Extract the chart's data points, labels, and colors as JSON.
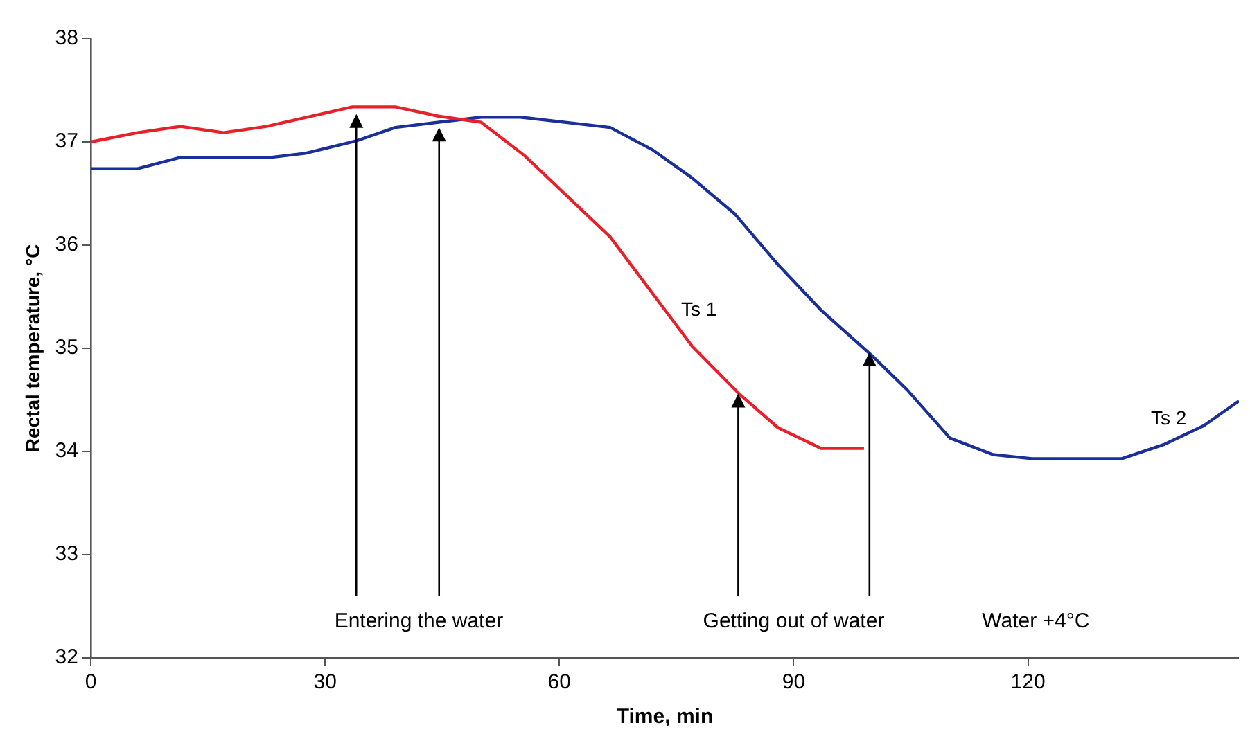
{
  "chart_data": {
    "type": "line",
    "xlabel": "Time, min",
    "ylabel": "Rectal temperature, °C",
    "xlim": [
      0,
      147
    ],
    "xticks": [
      0,
      30,
      60,
      90,
      120
    ],
    "ylim": [
      32,
      38
    ],
    "yticks": [
      32,
      33,
      34,
      35,
      36,
      37,
      38
    ],
    "marker": "none",
    "line_style": "solid",
    "legend": false,
    "series": [
      {
        "name": "Ts 1",
        "color": "#e8202a",
        "x": [
          0,
          6,
          11.5,
          17,
          22.5,
          33.5,
          39,
          44.5,
          50,
          55.5,
          66.5,
          77,
          83,
          88,
          93.5,
          99
        ],
        "values": [
          37.0,
          37.09,
          37.15,
          37.09,
          37.15,
          37.34,
          37.34,
          37.25,
          37.19,
          36.87,
          36.08,
          35.02,
          34.56,
          34.23,
          34.03,
          34.03
        ]
      },
      {
        "name": "Ts 2",
        "color": "#1a2f99",
        "x": [
          0,
          6,
          11.5,
          23,
          27.5,
          34,
          39,
          45.5,
          50,
          55,
          66.5,
          72,
          77,
          82.5,
          88,
          93.5,
          100,
          104.5,
          110,
          115.5,
          120.5,
          132,
          137.5,
          142.5,
          147
        ],
        "values": [
          36.74,
          36.74,
          36.85,
          36.85,
          36.89,
          37.01,
          37.14,
          37.2,
          37.24,
          37.24,
          37.14,
          36.92,
          36.65,
          36.3,
          35.81,
          35.37,
          34.93,
          34.6,
          34.13,
          33.97,
          33.93,
          33.93,
          34.07,
          34.25,
          34.49
        ]
      }
    ],
    "annotations": [
      {
        "text": "Entering the water",
        "x": 34,
        "y": 37.27
      },
      {
        "text": "Getting out of water",
        "x": 82.9,
        "y": 34.56
      },
      "Water +4°C"
    ]
  }
}
